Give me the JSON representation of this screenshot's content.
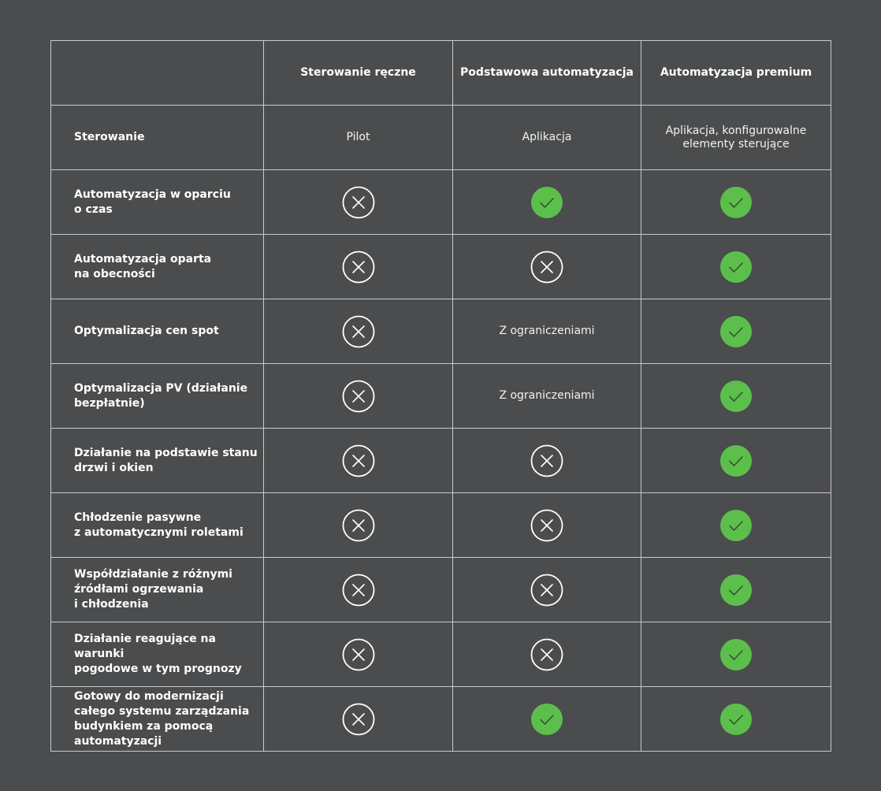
{
  "table": {
    "columns": [
      "Sterowanie ręczne",
      "Podstawowa automatyzacja",
      "Automatyzacja premium"
    ],
    "rows": [
      [
        "Sterowanie",
        "Pilot",
        "Aplikacja",
        "Aplikacja, konfigurowalne\nelementy sterujące"
      ],
      [
        "Automatyzacja w oparciu\no czas",
        false,
        true,
        true
      ],
      [
        "Automatyzacja oparta\nna obecności",
        false,
        false,
        true
      ],
      [
        "Optymalizacja cen spot",
        false,
        "Z ograniczeniami",
        true
      ],
      [
        "Optymalizacja PV (działanie\nbezpłatnie)",
        false,
        "Z ograniczeniami",
        true
      ],
      [
        "Działanie na podstawie stanu\ndrzwi i okien",
        false,
        false,
        true
      ],
      [
        "Chłodzenie pasywne\nz automatycznymi roletami",
        false,
        false,
        true
      ],
      [
        "Współdziałanie z różnymi\nźródłami ogrzewania\ni chłodzenia",
        false,
        false,
        true
      ],
      [
        "Działanie reagujące na warunki\npogodowe w tym prognozy",
        false,
        false,
        true
      ],
      [
        "Gotowy do modernizacji\ncałego systemu zarządzania\nbudynkiem za pomocą\nautomatyzacji",
        false,
        true,
        true
      ]
    ]
  }
}
